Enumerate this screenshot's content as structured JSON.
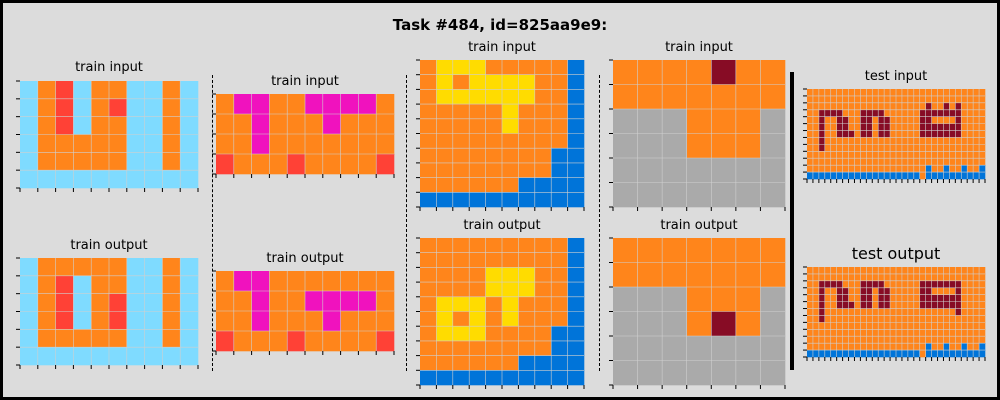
{
  "title": "Task #484, id=825aa9e9:",
  "palette": {
    "0": "#000000",
    "1": "#0074D9",
    "2": "#FF4136",
    "3": "#2ECC40",
    "4": "#FFDC00",
    "5": "#AAAAAA",
    "6": "#F012BE",
    "7": "#FF851B",
    "8": "#7FDBFF",
    "9": "#870C25",
    "grid_line": "#cfcfcf"
  },
  "pairs": [
    {
      "input": {
        "label": "train input",
        "grid": [
          "8728778878",
          "8728728878",
          "8728778878",
          "8777778878",
          "8777778878",
          "8888888888"
        ]
      },
      "output": {
        "label": "train output",
        "grid": [
          "8777778878",
          "8728778878",
          "8728728878",
          "8728728878",
          "8777778878",
          "8888888888"
        ]
      }
    },
    {
      "input": {
        "label": "train input",
        "grid": [
          "7667766667",
          "7767776777",
          "7767777777",
          "2777277772"
        ]
      },
      "output": {
        "label": "train output",
        "grid": [
          "7667777777",
          "7767766667",
          "7767776777",
          "2777277772"
        ]
      }
    },
    {
      "input": {
        "label": "train input",
        "grid": [
          "7444777771",
          "7474444771",
          "7444444771",
          "7777747771",
          "7777747771",
          "7777777771",
          "7777777711",
          "7777777711",
          "7777771111",
          "1111111111"
        ]
      },
      "output": {
        "label": "train output",
        "grid": [
          "7777777771",
          "7777777771",
          "7777444771",
          "7777444771",
          "7444747771",
          "7474747771",
          "7444777711",
          "7777777711",
          "7777771111",
          "1111111111"
        ]
      }
    },
    {
      "input": {
        "label": "train input",
        "grid": [
          "7777977",
          "7777777",
          "5557775",
          "5557775",
          "5555555",
          "5555555"
        ]
      },
      "output": {
        "label": "train output",
        "grid": [
          "7777777",
          "7777777",
          "5557775",
          "5557975",
          "5555555",
          "5555555"
        ]
      }
    }
  ],
  "test": {
    "input": {
      "label": "test input",
      "grid": [
        "777777777777777777777777777777",
        "777777777777777777777777777777",
        "777777777777777777779779797777",
        "779999777999977777799999997777",
        "779779977997997777799777797777",
        "779779977997997777799999997777",
        "779779997997997777799999997777",
        "779777777777777777777777777777",
        "779777777777777777777777777777",
        "777777777777777777777777777777",
        "777777777777777777777777777777",
        "777777777777777777771771771771",
        "111111111111111111171111111111"
      ]
    },
    "output": {
      "label": "test output",
      "grid": [
        "777777777777777777777777777777",
        "777777777777777777777777777777",
        "779999777999977777799999997777",
        "779779977997997777799777797777",
        "779779977997997777799999997777",
        "779779997997997777799999997777",
        "779777777777777777777777797777",
        "779777777777777777777777777777",
        "777777777777777777777777777777",
        "777777777777777777777777777777",
        "777777777777777777777777777777",
        "777777777777777777771771771771",
        "111111111111111111171111111111"
      ]
    }
  }
}
